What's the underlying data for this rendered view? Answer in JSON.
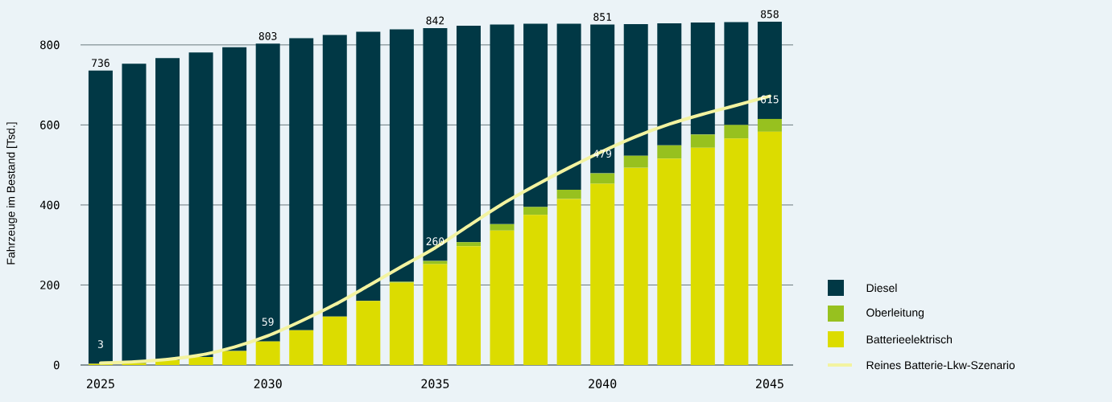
{
  "chart_data": {
    "type": "bar",
    "stacked": true,
    "ylabel": "Fahrzeuge im Bestand [Tsd.]",
    "categories": [
      "2025",
      null,
      null,
      null,
      null,
      "2030",
      null,
      null,
      null,
      null,
      "2035",
      null,
      null,
      null,
      null,
      "2040",
      null,
      null,
      null,
      null,
      "2045"
    ],
    "series": [
      {
        "name": "Batterieelektrisch",
        "color": "#dcdc00",
        "values": [
          3,
          5,
          12,
          20,
          35,
          59,
          87,
          121,
          160,
          206,
          252,
          297,
          336,
          375,
          415,
          453,
          493,
          516,
          543,
          566,
          583
        ]
      },
      {
        "name": "Oberleitung",
        "color": "#97c11f",
        "values": [
          0,
          0,
          0,
          0,
          0,
          0,
          0,
          0,
          0,
          2,
          8,
          10,
          16,
          20,
          23,
          26,
          30,
          33,
          33,
          34,
          32
        ]
      },
      {
        "name": "Diesel",
        "color": "#013845",
        "values": [
          733,
          748,
          755,
          761,
          759,
          744,
          730,
          704,
          673,
          631,
          582,
          541,
          499,
          458,
          415,
          372,
          329,
          305,
          280,
          257,
          243
        ]
      },
      {
        "name": "Reines Batterie-Lkw-Szenario",
        "type": "line",
        "color": "#f3f3a0",
        "values": [
          5,
          8,
          14,
          25,
          45,
          73,
          110,
          151,
          198,
          246,
          293,
          348,
          402,
          449,
          493,
          534,
          571,
          602,
          627,
          649,
          672
        ]
      }
    ],
    "totals": [
      "736",
      null,
      null,
      null,
      null,
      "803",
      null,
      null,
      null,
      null,
      "842",
      null,
      null,
      null,
      null,
      "851",
      null,
      null,
      null,
      null,
      "858"
    ],
    "annotations": [
      {
        "text": "3",
        "x": "2025",
        "y": 3
      },
      {
        "text": "59",
        "x": "2030",
        "y": 59
      },
      {
        "text": "260",
        "x": "2035",
        "y": 260
      },
      {
        "text": "479",
        "x": "2040",
        "y": 479
      },
      {
        "text": "615",
        "x": "2045",
        "y": 615
      }
    ],
    "ylim": [
      0,
      858
    ],
    "yticks": [
      0,
      200,
      400,
      600,
      800
    ],
    "grid": "y",
    "legend": "bottom right"
  }
}
